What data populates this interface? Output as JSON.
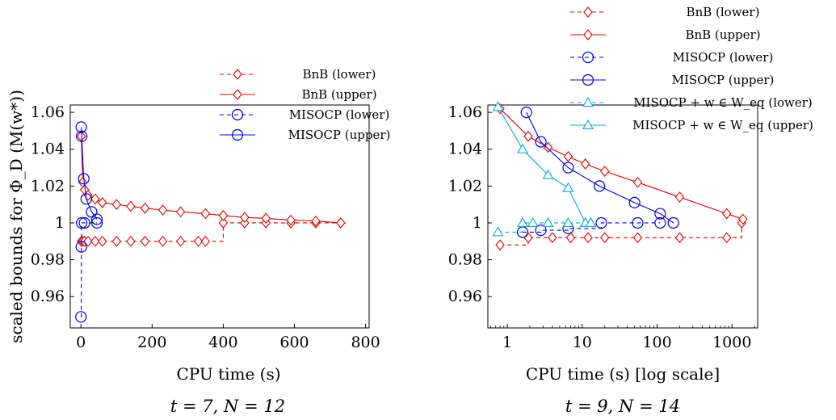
{
  "y_axis_label": "scaled bounds for Φ_D (M(w*))",
  "chart_data": [
    {
      "type": "line",
      "caption": "t = 7, N = 12",
      "xlabel": "CPU time (s)",
      "x_scale": "linear",
      "xlim": [
        -30,
        810
      ],
      "ylim": [
        0.943,
        1.064
      ],
      "xticks": [
        0,
        200,
        400,
        600,
        800
      ],
      "xtick_labels": [
        "0",
        "200",
        "400",
        "600",
        "800"
      ],
      "yticks": [
        0.96,
        0.98,
        1.0,
        1.02,
        1.04,
        1.06
      ],
      "ytick_labels": [
        "0.96",
        "0.98",
        "1",
        "1.02",
        "1.04",
        "1.06"
      ],
      "legend_position": "upper right, outside plot",
      "series": [
        {
          "name": "BnB (lower)",
          "color": "#dd0000",
          "dashed": true,
          "marker": "diamond",
          "x": [
            1,
            5,
            10,
            20,
            40,
            60,
            100,
            140,
            180,
            230,
            280,
            330,
            350,
            400,
            460,
            520,
            590,
            660,
            730
          ],
          "y": [
            0.99,
            0.99,
            0.99,
            0.99,
            0.99,
            0.99,
            0.99,
            0.99,
            0.99,
            0.99,
            0.99,
            0.99,
            0.99,
            1.0,
            1.0,
            1.0,
            1.0,
            1.0,
            1.0
          ]
        },
        {
          "name": "BnB (upper)",
          "color": "#dd0000",
          "dashed": false,
          "marker": "diamond",
          "x": [
            1,
            5,
            10,
            20,
            40,
            60,
            100,
            140,
            180,
            230,
            280,
            350,
            400,
            460,
            520,
            590,
            660,
            730
          ],
          "y": [
            1.047,
            1.022,
            1.018,
            1.015,
            1.013,
            1.011,
            1.01,
            1.009,
            1.008,
            1.007,
            1.006,
            1.005,
            1.004,
            1.003,
            1.0025,
            1.0015,
            1.001,
            1.0
          ]
        },
        {
          "name": "MISOCP (lower)",
          "color": "#0000dd",
          "dashed": true,
          "marker": "circle",
          "x": [
            0,
            1,
            2,
            10,
            45
          ],
          "y": [
            0.949,
            0.987,
            1.0,
            1.0,
            1.0
          ]
        },
        {
          "name": "MISOCP (upper)",
          "color": "#0000dd",
          "dashed": false,
          "marker": "circle",
          "x": [
            1,
            2,
            8,
            15,
            30,
            45
          ],
          "y": [
            1.052,
            1.047,
            1.024,
            1.013,
            1.006,
            1.002
          ]
        }
      ]
    },
    {
      "type": "line",
      "caption": "t = 9, N = 14",
      "xlabel": "CPU time (s) [log scale]",
      "x_scale": "log",
      "xlim": [
        0.55,
        2200
      ],
      "ylim": [
        0.943,
        1.064
      ],
      "xticks": [
        1,
        10,
        100,
        1000
      ],
      "xtick_labels": [
        "1",
        "10",
        "100",
        "1000"
      ],
      "yticks": [
        0.96,
        0.98,
        1.0,
        1.02,
        1.04,
        1.06
      ],
      "ytick_labels": [
        "0.96",
        "0.98",
        "1",
        "1.02",
        "1.04",
        "1.06"
      ],
      "legend_position": "upper right, outside plot",
      "series": [
        {
          "name": "BnB (lower)",
          "color": "#dd0000",
          "dashed": true,
          "marker": "diamond",
          "x": [
            0.8,
            1.9,
            4,
            7,
            12,
            20,
            55,
            200,
            850,
            1350
          ],
          "y": [
            0.988,
            0.992,
            0.992,
            0.992,
            0.992,
            0.992,
            0.992,
            0.992,
            0.992,
            1.0
          ]
        },
        {
          "name": "BnB (upper)",
          "color": "#dd0000",
          "dashed": false,
          "marker": "diamond",
          "x": [
            0.8,
            1.9,
            3.5,
            6.5,
            11,
            20,
            55,
            200,
            850,
            1400
          ],
          "y": [
            1.062,
            1.047,
            1.041,
            1.036,
            1.032,
            1.028,
            1.022,
            1.014,
            1.005,
            1.002
          ]
        },
        {
          "name": "MISOCP (lower)",
          "color": "#0000dd",
          "dashed": true,
          "marker": "circle",
          "x": [
            1.6,
            2.8,
            6.5,
            18,
            55,
            110
          ],
          "y": [
            0.995,
            0.996,
            0.997,
            1.0,
            1.0,
            1.0
          ]
        },
        {
          "name": "MISOCP (upper)",
          "color": "#0000dd",
          "dashed": false,
          "marker": "circle",
          "x": [
            1.8,
            2.8,
            6.5,
            17,
            50,
            110,
            165
          ],
          "y": [
            1.06,
            1.044,
            1.03,
            1.02,
            1.011,
            1.005,
            1.0
          ]
        },
        {
          "name": "MISOCP + w ∈ W_eq (lower)",
          "color": "#00aadd",
          "dashed": true,
          "marker": "triangle",
          "x": [
            0.75,
            1.6,
            2.2,
            3.5,
            6.5,
            11,
            13
          ],
          "y": [
            0.995,
            1.0,
            1.0,
            1.0,
            1.0,
            1.0,
            1.0
          ]
        },
        {
          "name": "MISOCP + w ∈ W_eq (upper)",
          "color": "#00aadd",
          "dashed": false,
          "marker": "triangle",
          "x": [
            0.75,
            1.6,
            3.5,
            6.5,
            11,
            13
          ],
          "y": [
            1.063,
            1.04,
            1.026,
            1.019,
            1.0,
            1.0
          ]
        }
      ]
    }
  ]
}
